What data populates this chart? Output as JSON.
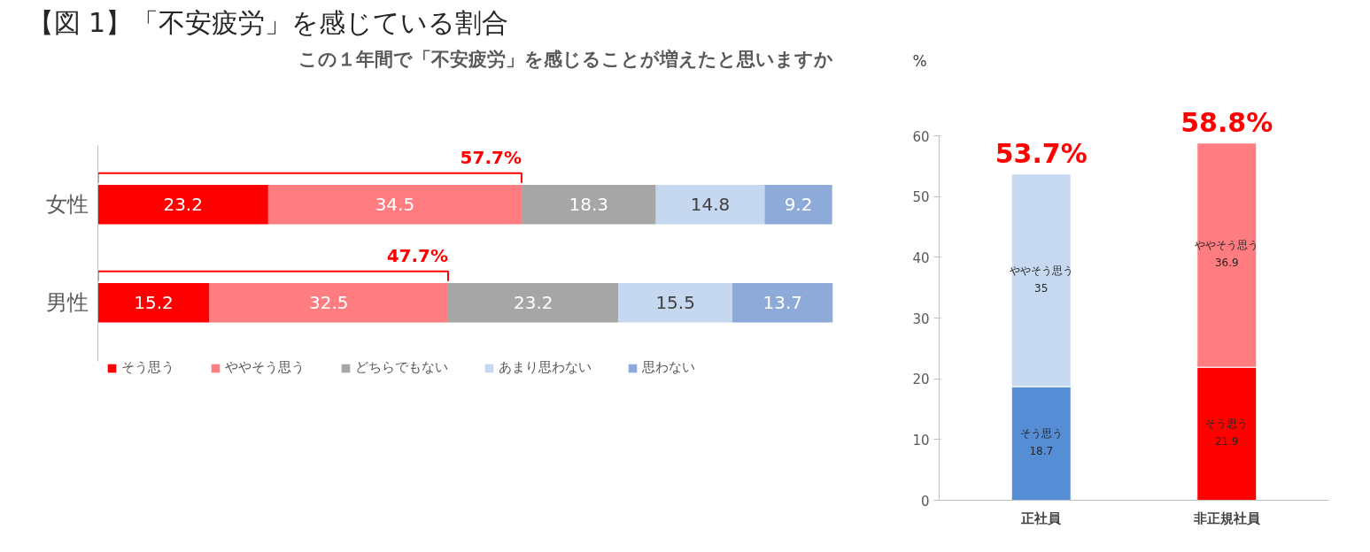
{
  "chart_data": [
    {
      "type": "bar",
      "orientation": "horizontal",
      "stacked": true,
      "title": "【図 1】「不安疲労」を感じている割合",
      "subtitle": "この１年間で「不安疲労」を感じることが増えたと思いますか",
      "categories": [
        "女性",
        "男性"
      ],
      "series": [
        {
          "name": "そう思う",
          "color": "#ff0000",
          "values": [
            23.2,
            15.2
          ]
        },
        {
          "name": "ややそう思う",
          "color": "#ff7c80",
          "values": [
            34.5,
            32.5
          ]
        },
        {
          "name": "どちらでもない",
          "color": "#a6a6a6",
          "values": [
            18.3,
            23.2
          ]
        },
        {
          "name": "あまり思わない",
          "color": "#c5d8f0",
          "values": [
            14.8,
            15.5
          ]
        },
        {
          "name": "思わない",
          "color": "#8eaad8",
          "values": [
            9.2,
            13.7
          ]
        }
      ],
      "xlim": [
        0,
        100.1
      ],
      "tick_labels": "y",
      "data_labels": true,
      "legend": "bottom",
      "grid": false,
      "annotations": [
        {
          "text": "57.7%",
          "x": 57.7,
          "y": "女性"
        },
        {
          "text": "47.7%",
          "x": 47.7,
          "y": "男性"
        }
      ]
    },
    {
      "type": "bar",
      "stacked": true,
      "ylabel": "%",
      "categories": [
        "正社員",
        "非正規社員"
      ],
      "series": [
        {
          "name": "そう思う",
          "colors": [
            "#558ed5",
            "#ff0000"
          ],
          "values": [
            18.7,
            21.9
          ]
        },
        {
          "name": "ややそう思う",
          "colors": [
            "#c6d9f1",
            "#ff7c80"
          ],
          "values": [
            35,
            36.9
          ]
        }
      ],
      "ylim": [
        0,
        60
      ],
      "yticks": [
        0,
        10,
        20,
        30,
        40,
        50,
        60
      ],
      "data_labels": true,
      "legend": false,
      "grid": false,
      "totals": [
        "53.7%",
        "58.8%"
      ]
    }
  ]
}
